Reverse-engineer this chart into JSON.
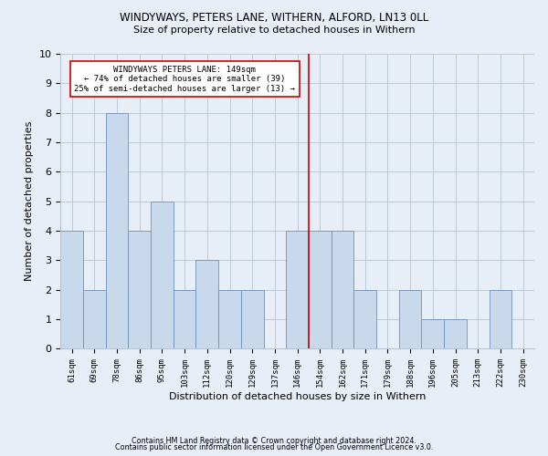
{
  "title1": "WINDYWAYS, PETERS LANE, WITHERN, ALFORD, LN13 0LL",
  "title2": "Size of property relative to detached houses in Withern",
  "xlabel": "Distribution of detached houses by size in Withern",
  "ylabel": "Number of detached properties",
  "categories": [
    "61sqm",
    "69sqm",
    "78sqm",
    "86sqm",
    "95sqm",
    "103sqm",
    "112sqm",
    "120sqm",
    "129sqm",
    "137sqm",
    "146sqm",
    "154sqm",
    "162sqm",
    "171sqm",
    "179sqm",
    "188sqm",
    "196sqm",
    "205sqm",
    "213sqm",
    "222sqm",
    "230sqm"
  ],
  "values": [
    4,
    2,
    8,
    4,
    5,
    2,
    3,
    2,
    2,
    0,
    4,
    4,
    4,
    2,
    0,
    2,
    1,
    1,
    0,
    2,
    0
  ],
  "bar_color": "#c9d9ec",
  "bar_edge_color": "#7090b8",
  "highlight_line_color": "#cc0000",
  "annotation_text": "WINDYWAYS PETERS LANE: 149sqm\n← 74% of detached houses are smaller (39)\n25% of semi-detached houses are larger (13) →",
  "annotation_box_color": "#ffffff",
  "annotation_box_edge": "#cc0000",
  "ylim": [
    0,
    10
  ],
  "yticks": [
    0,
    1,
    2,
    3,
    4,
    5,
    6,
    7,
    8,
    9,
    10
  ],
  "footer1": "Contains HM Land Registry data © Crown copyright and database right 2024.",
  "footer2": "Contains public sector information licensed under the Open Government Licence v3.0.",
  "background_color": "#e8eef8"
}
